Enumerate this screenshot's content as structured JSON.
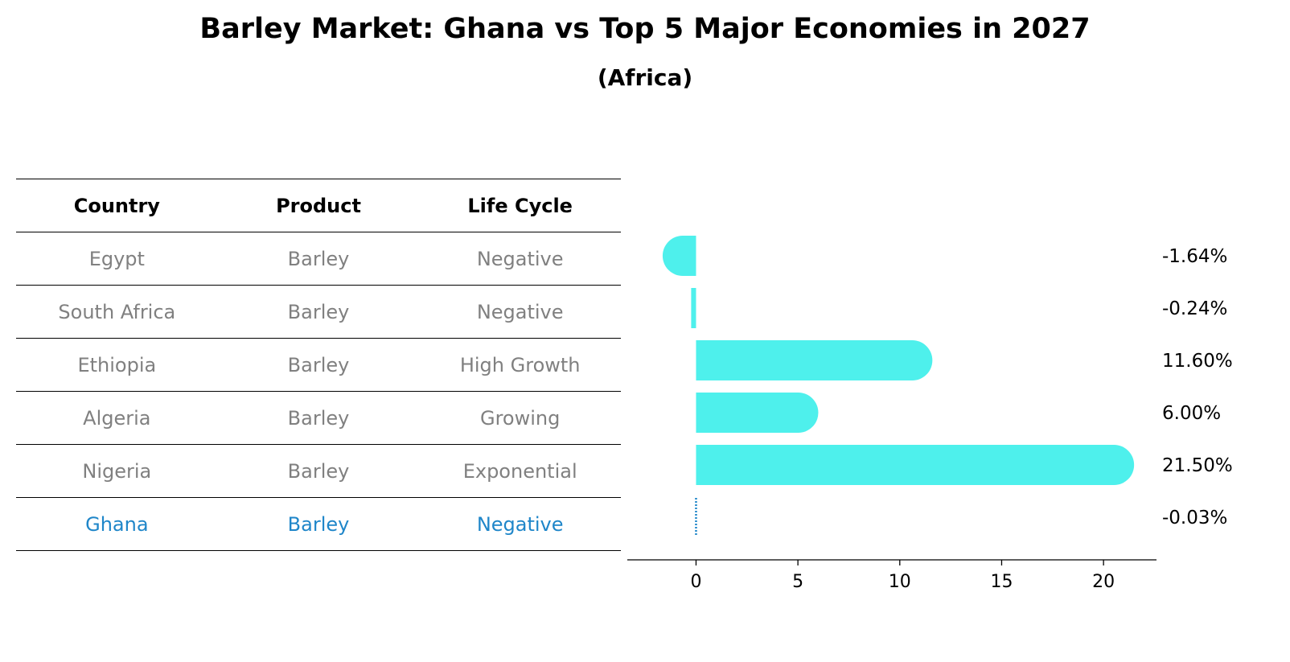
{
  "title": "Barley Market: Ghana vs Top 5 Major Economies in 2027",
  "subtitle": "(Africa)",
  "table": {
    "headers": [
      "Country",
      "Product",
      "Life Cycle"
    ],
    "rows": [
      [
        "Egypt",
        "Barley",
        "Negative"
      ],
      [
        "South Africa",
        "Barley",
        "Negative"
      ],
      [
        "Ethiopia",
        "Barley",
        "High Growth"
      ],
      [
        "Algeria",
        "Barley",
        "Growing"
      ],
      [
        "Nigeria",
        "Barley",
        "Exponential"
      ],
      [
        "Ghana",
        "Barley",
        "Negative"
      ]
    ]
  },
  "chart_data": {
    "type": "bar",
    "orientation": "horizontal",
    "categories": [
      "Egypt",
      "South Africa",
      "Ethiopia",
      "Algeria",
      "Nigeria",
      "Ghana"
    ],
    "values": [
      -1.64,
      -0.24,
      11.6,
      6.0,
      21.5,
      -0.03
    ],
    "value_labels": [
      "-1.64%",
      "-0.24%",
      "11.60%",
      "6.00%",
      "21.50%",
      "-0.03%"
    ],
    "xlim": [
      -2.9,
      22.6
    ],
    "xticks": [
      0,
      5,
      10,
      15,
      20
    ],
    "bar_color": "#4ef0ec",
    "highlight_color": "#1f86c9",
    "highlight_category": "Ghana"
  }
}
